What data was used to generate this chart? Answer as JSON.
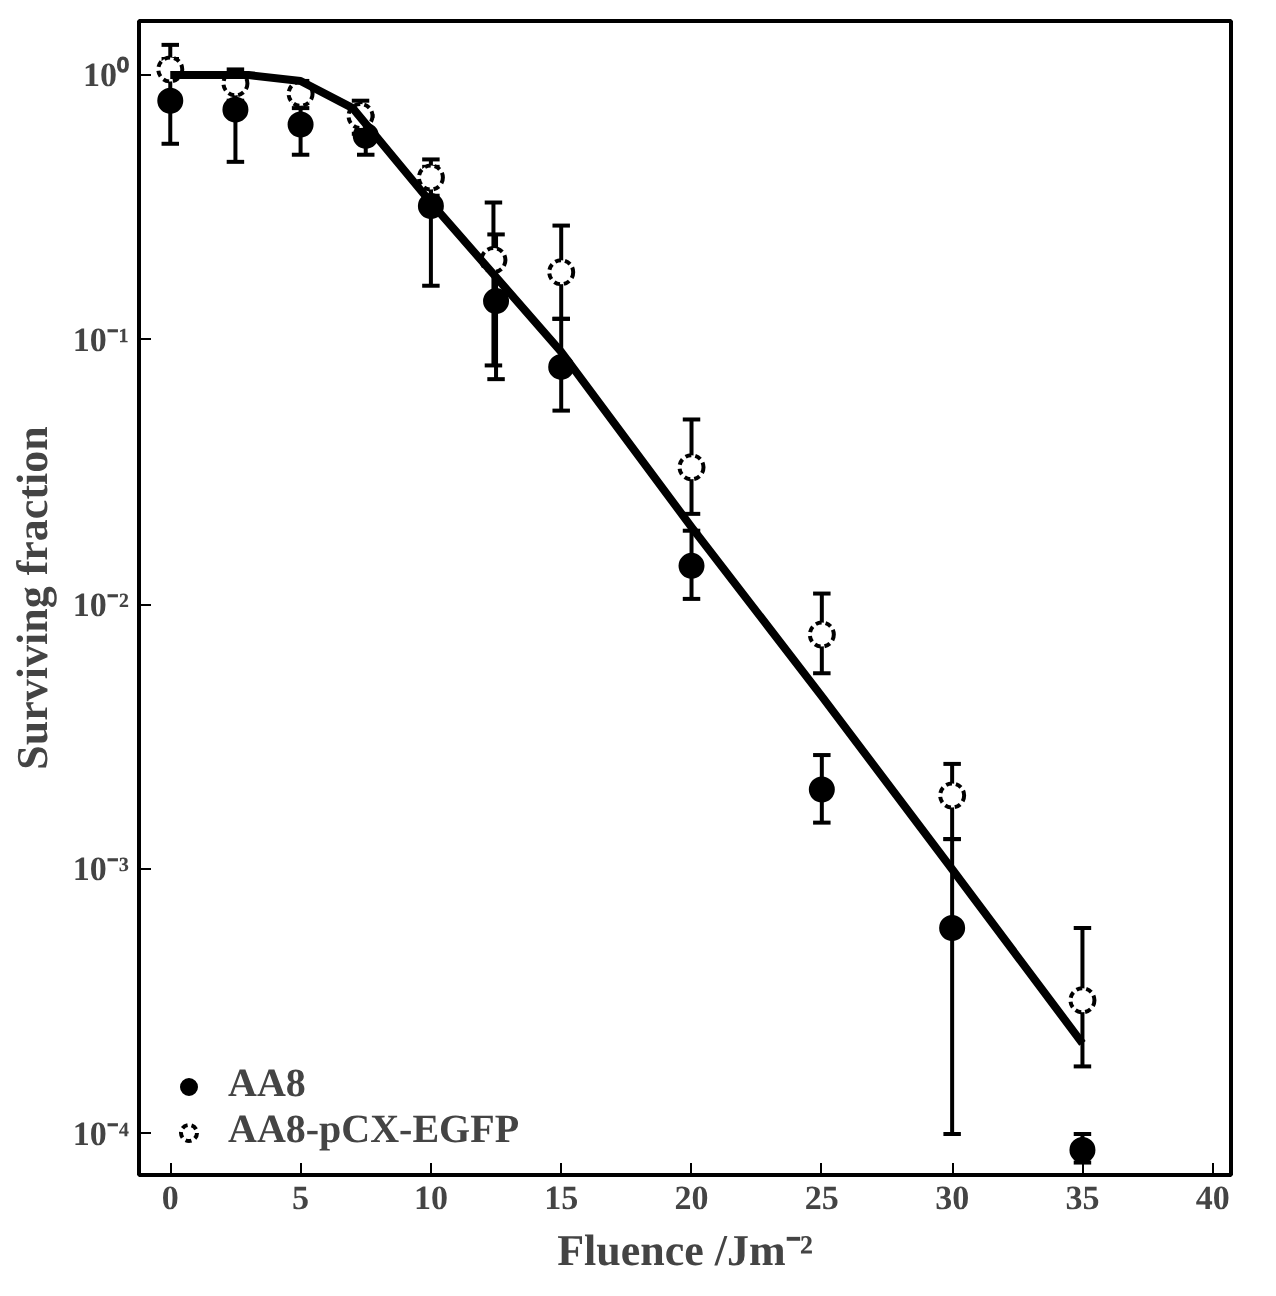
{
  "chart_data": {
    "type": "scatter",
    "xlabel": "Fluence /Jm⁻²",
    "ylabel": "Surviving fraction",
    "x": [
      0,
      2.5,
      5,
      7.5,
      10,
      12.5,
      15,
      20,
      25,
      30,
      35
    ],
    "series": [
      {
        "name": "AA8",
        "color": "#000000",
        "marker": "circle",
        "values": [
          0.8,
          0.74,
          0.65,
          0.59,
          0.32,
          0.14,
          0.079,
          0.014,
          0.002,
          0.0006,
          8.7e-05
        ],
        "errors": [
          [
            0.55,
            1.15
          ],
          [
            0.47,
            0.95
          ],
          [
            0.5,
            0.8
          ],
          [
            0.5,
            0.7
          ],
          [
            0.16,
            0.45
          ],
          [
            0.071,
            0.25
          ],
          [
            0.054,
            0.12
          ],
          [
            0.0105,
            0.019
          ],
          [
            0.0015,
            0.0027
          ],
          [
            0.0001,
            0.0013
          ],
          [
            7.8e-05,
            0.0001
          ]
        ]
      },
      {
        "name": "AA8-pCX-EGFP",
        "color": "#000000",
        "marker": "circle_open",
        "x": [
          0,
          2.5,
          5,
          7.3,
          10,
          12.4,
          15,
          20,
          25,
          30,
          35
        ],
        "values": [
          1.05,
          0.93,
          0.85,
          0.7,
          0.41,
          0.2,
          0.18,
          0.033,
          0.0077,
          0.0019,
          0.00032
        ],
        "errors": [
          [
            1.05,
            1.3
          ],
          [
            0.8,
            1.05
          ],
          [
            0.75,
            0.95
          ],
          [
            0.6,
            0.8
          ],
          [
            0.35,
            0.48
          ],
          [
            0.08,
            0.33
          ],
          [
            0.12,
            0.27
          ],
          [
            0.022,
            0.05
          ],
          [
            0.0055,
            0.011
          ],
          [
            0.0013,
            0.0025
          ],
          [
            0.00018,
            0.0006
          ]
        ]
      },
      {
        "type": "line",
        "color": "#000000",
        "x": [
          0,
          3,
          5,
          7,
          10,
          15,
          20,
          25,
          30,
          35
        ],
        "values": [
          1.0,
          1.0,
          0.95,
          0.75,
          0.33,
          0.09,
          0.0196,
          0.0045,
          0.001,
          0.00022
        ]
      }
    ],
    "log": "y",
    "xlim": [
      -1.2,
      40.7
    ],
    "ylim": [
      7e-05,
      1.6
    ],
    "xticks": [
      0,
      5,
      10,
      15,
      20,
      25,
      30,
      35,
      40
    ],
    "yticks": [
      {
        "value": 0.0001,
        "label": "10⁻⁴"
      },
      {
        "value": 0.001,
        "label": "10⁻³"
      },
      {
        "value": 0.01,
        "label": "10⁻²"
      },
      {
        "value": 0.1,
        "label": "10⁻¹"
      },
      {
        "value": 1,
        "label": "10⁰"
      }
    ],
    "grid": false,
    "legend": "bottom left",
    "line_style": "solid"
  }
}
